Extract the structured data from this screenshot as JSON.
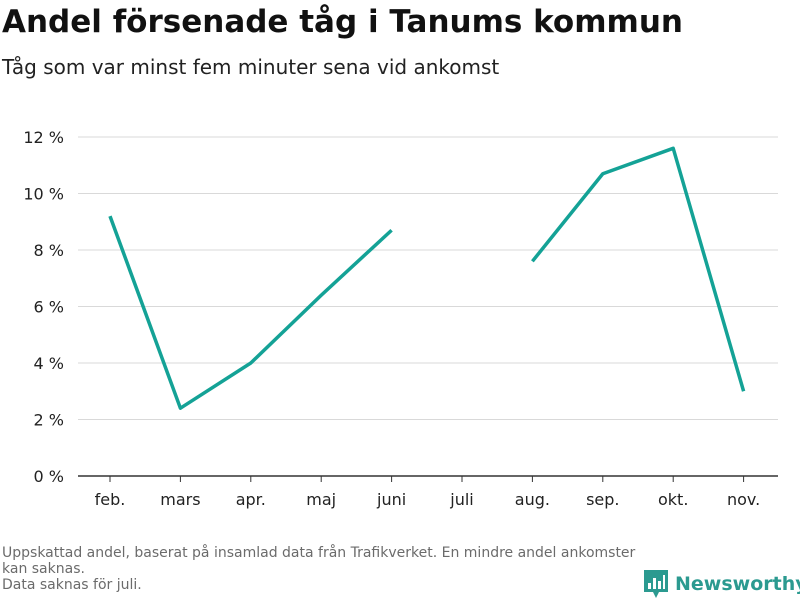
{
  "header": {
    "title": "Andel försenade tåg i Tanums kommun",
    "subtitle": "Tåg som var minst fem minuter sena vid ankomst"
  },
  "footer": {
    "note_line1": "Uppskattad andel, baserat på insamlad data från Trafikverket. En mindre andel ankomster kan saknas.",
    "note_line2": "Data saknas för juli.",
    "brand": "Newsworthy",
    "brand_icon": "newsworthy-logo-icon"
  },
  "colors": {
    "line": "#14a296",
    "grid": "#d9d9d9",
    "axis": "#333333",
    "brand": "#2b9a90"
  },
  "chart_data": {
    "type": "line",
    "title": "Andel försenade tåg i Tanums kommun",
    "subtitle": "Tåg som var minst fem minuter sena vid ankomst",
    "categories": [
      "feb.",
      "mars",
      "apr.",
      "maj",
      "juni",
      "juli",
      "aug.",
      "sep.",
      "okt.",
      "nov."
    ],
    "series": [
      {
        "values": [
          9.2,
          2.4,
          4.0,
          6.4,
          8.7,
          null,
          7.6,
          10.7,
          11.6,
          3.0
        ]
      }
    ],
    "ylim": [
      0,
      12
    ],
    "yticks": [
      0,
      2,
      4,
      6,
      8,
      10,
      12
    ],
    "ytick_labels": [
      "0 %",
      "2 %",
      "4 %",
      "6 %",
      "8 %",
      "10 %",
      "12 %"
    ],
    "xlabel": "",
    "ylabel": "",
    "grid": true
  }
}
